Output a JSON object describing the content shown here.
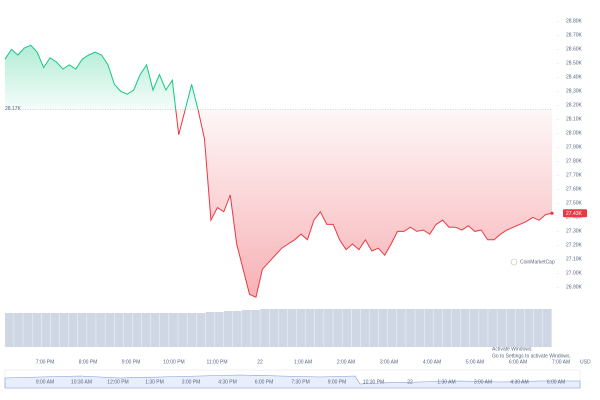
{
  "chart_data": {
    "type": "area",
    "values": [
      28.53,
      28.6,
      28.56,
      28.61,
      28.63,
      28.58,
      28.47,
      28.54,
      28.51,
      28.46,
      28.49,
      28.46,
      28.53,
      28.56,
      28.58,
      28.56,
      28.49,
      28.35,
      28.3,
      28.28,
      28.31,
      28.42,
      28.49,
      28.31,
      28.42,
      28.31,
      28.38,
      27.99,
      28.17,
      28.35,
      28.17,
      27.96,
      27.38,
      27.47,
      27.44,
      27.56,
      27.21,
      27.03,
      26.85,
      26.83,
      27.03,
      27.08,
      27.13,
      27.18,
      27.21,
      27.24,
      27.28,
      27.24,
      27.38,
      27.44,
      27.35,
      27.35,
      27.24,
      27.17,
      27.21,
      27.17,
      27.24,
      27.16,
      27.18,
      27.13,
      27.21,
      27.3,
      27.3,
      27.33,
      27.3,
      27.31,
      27.28,
      27.35,
      27.38,
      27.33,
      27.33,
      27.31,
      27.34,
      27.3,
      27.31,
      27.24,
      27.24,
      27.28,
      27.31,
      27.33,
      27.35,
      27.37,
      27.4,
      27.38,
      27.42,
      27.43
    ],
    "ylim": [
      26.81,
      28.81
    ],
    "yticks": [
      {
        "value": 26.9,
        "label": "26.90K"
      },
      {
        "value": 27.0,
        "label": "27.00K"
      },
      {
        "value": 27.1,
        "label": "27.10K"
      },
      {
        "value": 27.2,
        "label": "27.20K"
      },
      {
        "value": 27.3,
        "label": "27.30K"
      },
      {
        "value": 27.4,
        "label": "27.40K"
      },
      {
        "value": 27.5,
        "label": "27.50K"
      },
      {
        "value": 27.6,
        "label": "27.60K"
      },
      {
        "value": 27.7,
        "label": "27.70K"
      },
      {
        "value": 27.8,
        "label": "27.80K"
      },
      {
        "value": 27.9,
        "label": "27.90K"
      },
      {
        "value": 28.0,
        "label": "28.00K"
      },
      {
        "value": 28.1,
        "label": "28.10K"
      },
      {
        "value": 28.2,
        "label": "28.20K"
      },
      {
        "value": 28.3,
        "label": "28.30K"
      },
      {
        "value": 28.4,
        "label": "28.40K"
      },
      {
        "value": 28.5,
        "label": "28.50K"
      },
      {
        "value": 28.6,
        "label": "28.60K"
      },
      {
        "value": 28.7,
        "label": "28.70K"
      },
      {
        "value": 28.8,
        "label": "28.80K"
      }
    ],
    "baseline": {
      "value": 28.17,
      "label": "28.17K"
    },
    "last_price_label": "27.43K",
    "up_color": "#16c784",
    "down_color": "#ea3943",
    "x_labels": [
      "7:00 PM",
      "8:00 PM",
      "9:00 PM",
      "10:00 PM",
      "11:00 PM",
      "22",
      "1:00 AM",
      "2:00 AM",
      "3:00 AM",
      "4:00 AM",
      "5:00 AM",
      "6:00 AM",
      "7:00 AM"
    ],
    "currency": "USD",
    "volume": {
      "values": [
        34,
        34,
        34,
        34,
        34,
        34,
        34,
        34,
        34,
        34,
        34,
        34,
        34,
        34,
        34,
        34,
        34,
        34,
        34,
        34,
        34,
        34,
        35,
        35,
        36,
        36,
        37,
        37,
        38,
        38,
        38,
        38,
        38,
        38,
        38,
        38,
        38,
        38,
        38,
        38,
        38,
        38,
        38,
        38,
        38,
        38,
        38,
        38,
        38,
        38,
        38,
        38,
        38,
        38,
        38,
        38,
        38,
        38,
        38,
        38
      ],
      "ylim": [
        0,
        40
      ],
      "color": "#cfd6e4"
    },
    "navigator_labels": [
      "9:00 AM",
      "10:30 AM",
      "12:00 PM",
      "1:30 PM",
      "3:00 PM",
      "4:30 PM",
      "6:00 PM",
      "7:30 PM",
      "9:00 PM",
      "10:30 PM",
      "22",
      "1:30 AM",
      "3:00 AM",
      "4:30 AM",
      "6:00 AM"
    ],
    "watermark": "CoinMarketCap",
    "os_notice": {
      "title": "Activate Windows",
      "text": "Go to Settings to activate Windows."
    }
  }
}
